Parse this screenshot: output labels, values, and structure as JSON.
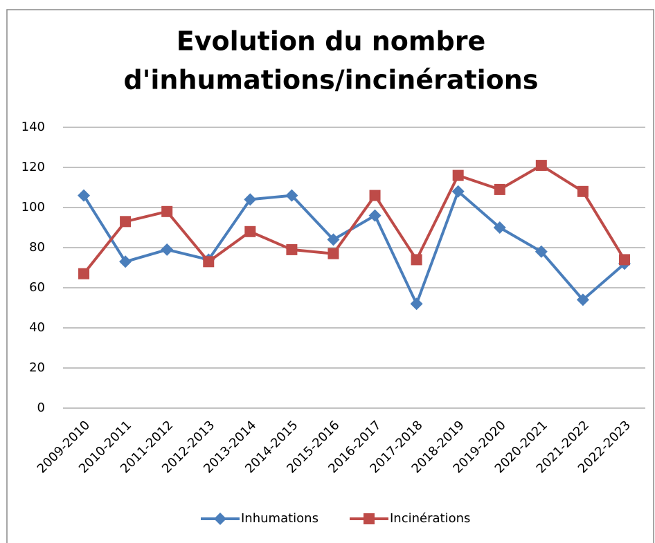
{
  "chart_data": {
    "type": "line",
    "title": [
      "Evolution du nombre",
      "d'inhumations/incinérations"
    ],
    "categories": [
      "2009-2010",
      "2010-2011",
      "2011-2012",
      "2012-2013",
      "2013-2014",
      "2014-2015",
      "2015-2016",
      "2016-2017",
      "2017-2018",
      "2018-2019",
      "2019-2020",
      "2020-2021",
      "2021-2022",
      "2022-2023"
    ],
    "series": [
      {
        "name": "Inhumations",
        "color": "#4a7ebb",
        "marker": "diamond",
        "values": [
          106,
          73,
          79,
          74,
          104,
          106,
          84,
          96,
          52,
          108,
          90,
          78,
          54,
          72
        ]
      },
      {
        "name": "Incinérations",
        "color": "#be4b48",
        "marker": "square",
        "values": [
          67,
          93,
          98,
          73,
          88,
          79,
          77,
          106,
          74,
          116,
          109,
          121,
          108,
          74
        ]
      }
    ],
    "ylim": [
      0,
      140
    ],
    "yticks": [
      0,
      20,
      40,
      60,
      80,
      100,
      120,
      140
    ],
    "grid": true,
    "legend": "bottom"
  }
}
